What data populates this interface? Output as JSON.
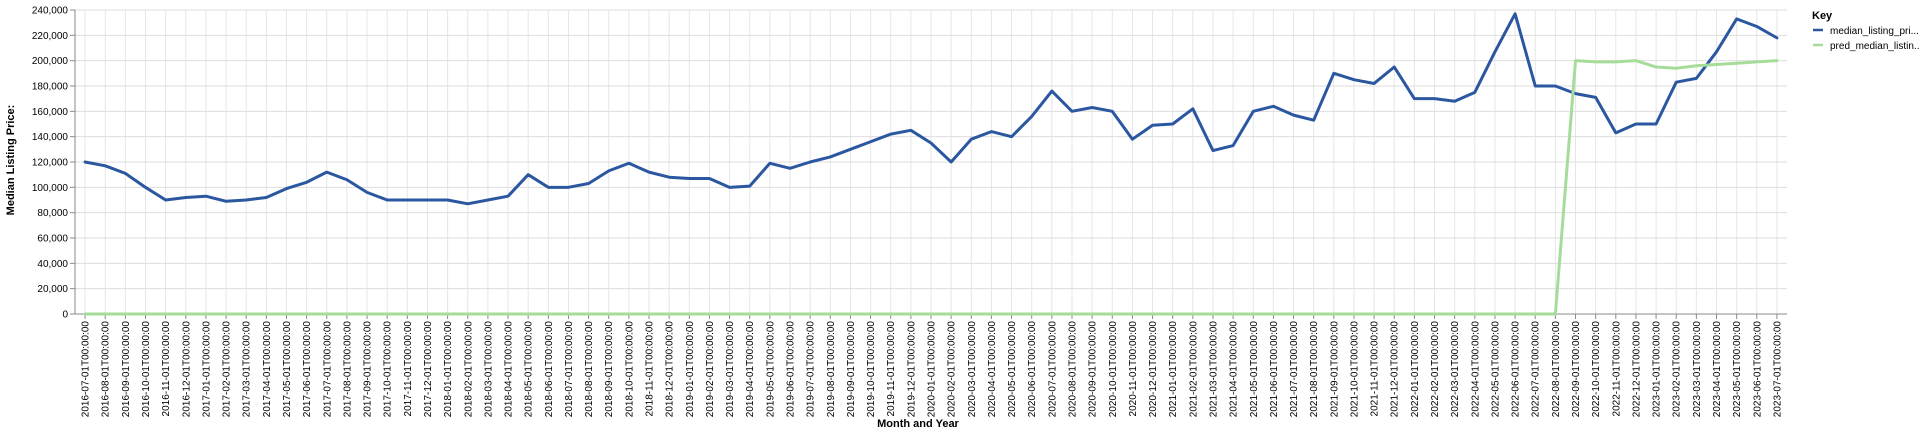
{
  "chart_data": {
    "type": "line",
    "title": "",
    "xlabel": "Month and Year",
    "ylabel": "Median Listing Price:",
    "ylim": [
      0,
      240000
    ],
    "yticks": [
      "0",
      "20,000",
      "40,000",
      "60,000",
      "80,000",
      "100,000",
      "120,000",
      "140,000",
      "160,000",
      "180,000",
      "200,000",
      "220,000",
      "240,000"
    ],
    "grid": true,
    "legend_title": "Key",
    "legend_position": "top-right",
    "x": [
      "2016-07-01T00:00:00",
      "2016-08-01T00:00:00",
      "2016-09-01T00:00:00",
      "2016-10-01T00:00:00",
      "2016-11-01T00:00:00",
      "2016-12-01T00:00:00",
      "2017-01-01T00:00:00",
      "2017-02-01T00:00:00",
      "2017-03-01T00:00:00",
      "2017-04-01T00:00:00",
      "2017-05-01T00:00:00",
      "2017-06-01T00:00:00",
      "2017-07-01T00:00:00",
      "2017-08-01T00:00:00",
      "2017-09-01T00:00:00",
      "2017-10-01T00:00:00",
      "2017-11-01T00:00:00",
      "2017-12-01T00:00:00",
      "2018-01-01T00:00:00",
      "2018-02-01T00:00:00",
      "2018-03-01T00:00:00",
      "2018-04-01T00:00:00",
      "2018-05-01T00:00:00",
      "2018-06-01T00:00:00",
      "2018-07-01T00:00:00",
      "2018-08-01T00:00:00",
      "2018-09-01T00:00:00",
      "2018-10-01T00:00:00",
      "2018-11-01T00:00:00",
      "2018-12-01T00:00:00",
      "2019-01-01T00:00:00",
      "2019-02-01T00:00:00",
      "2019-03-01T00:00:00",
      "2019-04-01T00:00:00",
      "2019-05-01T00:00:00",
      "2019-06-01T00:00:00",
      "2019-07-01T00:00:00",
      "2019-08-01T00:00:00",
      "2019-09-01T00:00:00",
      "2019-10-01T00:00:00",
      "2019-11-01T00:00:00",
      "2019-12-01T00:00:00",
      "2020-01-01T00:00:00",
      "2020-02-01T00:00:00",
      "2020-03-01T00:00:00",
      "2020-04-01T00:00:00",
      "2020-05-01T00:00:00",
      "2020-06-01T00:00:00",
      "2020-07-01T00:00:00",
      "2020-08-01T00:00:00",
      "2020-09-01T00:00:00",
      "2020-10-01T00:00:00",
      "2020-11-01T00:00:00",
      "2020-12-01T00:00:00",
      "2021-01-01T00:00:00",
      "2021-02-01T00:00:00",
      "2021-03-01T00:00:00",
      "2021-04-01T00:00:00",
      "2021-05-01T00:00:00",
      "2021-06-01T00:00:00",
      "2021-07-01T00:00:00",
      "2021-08-01T00:00:00",
      "2021-09-01T00:00:00",
      "2021-10-01T00:00:00",
      "2021-11-01T00:00:00",
      "2021-12-01T00:00:00",
      "2022-01-01T00:00:00",
      "2022-02-01T00:00:00",
      "2022-03-01T00:00:00",
      "2022-04-01T00:00:00",
      "2022-05-01T00:00:00",
      "2022-06-01T00:00:00",
      "2022-07-01T00:00:00",
      "2022-08-01T00:00:00",
      "2022-09-01T00:00:00",
      "2022-10-01T00:00:00",
      "2022-11-01T00:00:00",
      "2022-12-01T00:00:00",
      "2023-01-01T00:00:00",
      "2023-02-01T00:00:00",
      "2023-03-01T00:00:00",
      "2023-04-01T00:00:00",
      "2023-05-01T00:00:00",
      "2023-06-01T00:00:00",
      "2023-07-01T00:00:00"
    ],
    "series": [
      {
        "name": "median_listing_pri...",
        "color": "#2b57a0",
        "values": [
          120000,
          117000,
          111000,
          100000,
          90000,
          92000,
          93000,
          89000,
          90000,
          92000,
          99000,
          104000,
          112000,
          106000,
          96000,
          90000,
          90000,
          90000,
          90000,
          87000,
          90000,
          93000,
          110000,
          100000,
          100000,
          103000,
          113000,
          119000,
          112000,
          108000,
          107000,
          107000,
          100000,
          101000,
          119000,
          115000,
          120000,
          124000,
          130000,
          136000,
          142000,
          145000,
          135000,
          120000,
          138000,
          144000,
          140000,
          156000,
          176000,
          160000,
          163000,
          160000,
          138000,
          149000,
          150000,
          162000,
          129000,
          133000,
          160000,
          164000,
          157000,
          153000,
          190000,
          185000,
          182000,
          195000,
          170000,
          170000,
          168000,
          175000,
          207000,
          237000,
          180000,
          180000,
          174000,
          171000,
          143000,
          150000,
          150000,
          183000,
          186000,
          207000,
          233000,
          227000,
          218000
        ]
      },
      {
        "name": "pred_median_listin...",
        "color": "#a6dc9a",
        "values": [
          0,
          0,
          0,
          0,
          0,
          0,
          0,
          0,
          0,
          0,
          0,
          0,
          0,
          0,
          0,
          0,
          0,
          0,
          0,
          0,
          0,
          0,
          0,
          0,
          0,
          0,
          0,
          0,
          0,
          0,
          0,
          0,
          0,
          0,
          0,
          0,
          0,
          0,
          0,
          0,
          0,
          0,
          0,
          0,
          0,
          0,
          0,
          0,
          0,
          0,
          0,
          0,
          0,
          0,
          0,
          0,
          0,
          0,
          0,
          0,
          0,
          0,
          0,
          0,
          0,
          0,
          0,
          0,
          0,
          0,
          0,
          0,
          0,
          0,
          200000,
          199000,
          199000,
          200000,
          195000,
          194000,
          196000,
          197000,
          198000,
          199000,
          200000
        ]
      }
    ]
  }
}
